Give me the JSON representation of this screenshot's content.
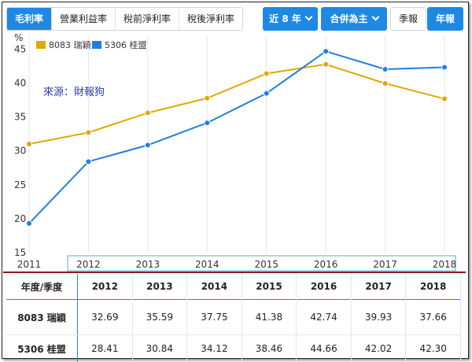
{
  "toolbar": {
    "tabs": [
      {
        "label": "毛利率",
        "active": true
      },
      {
        "label": "營業利益率",
        "active": false
      },
      {
        "label": "稅前淨利率",
        "active": false
      },
      {
        "label": "稅後淨利率",
        "active": false
      }
    ],
    "period_label": "近 8 年",
    "consolidation_label": "合併為主",
    "quarterly_label": "季報",
    "annual_label": "年報"
  },
  "colors": {
    "series_1": "#e0a800",
    "series_2": "#1e7fe0",
    "accent": "#1e88e5",
    "divider": "#8b1a1a"
  },
  "watermark": "來源：財報狗",
  "chart_data": {
    "type": "line",
    "ylabel": "%",
    "x": [
      "2011",
      "2012",
      "2013",
      "2014",
      "2015",
      "2016",
      "2017",
      "2018"
    ],
    "yticks": [
      15,
      20,
      25,
      30,
      35,
      40,
      45
    ],
    "ylim": [
      15,
      47
    ],
    "legend_position": "top-left",
    "grid": "vertical",
    "series": [
      {
        "name": "8083 瑞穎",
        "values": [
          31.0,
          32.69,
          35.59,
          37.75,
          41.38,
          42.74,
          39.93,
          37.66
        ]
      },
      {
        "name": "5306 桂盟",
        "values": [
          19.3,
          28.41,
          30.84,
          34.12,
          38.46,
          44.66,
          42.02,
          42.3
        ]
      }
    ]
  },
  "table": {
    "header_label": "年度/季度",
    "years": [
      "2012",
      "2013",
      "2014",
      "2015",
      "2016",
      "2017",
      "2018"
    ],
    "rows": [
      {
        "label": "8083 瑞穎",
        "values": [
          "32.69",
          "35.59",
          "37.75",
          "41.38",
          "42.74",
          "39.93",
          "37.66"
        ]
      },
      {
        "label": "5306 桂盟",
        "values": [
          "28.41",
          "30.84",
          "34.12",
          "38.46",
          "44.66",
          "42.02",
          "42.30"
        ]
      }
    ]
  }
}
